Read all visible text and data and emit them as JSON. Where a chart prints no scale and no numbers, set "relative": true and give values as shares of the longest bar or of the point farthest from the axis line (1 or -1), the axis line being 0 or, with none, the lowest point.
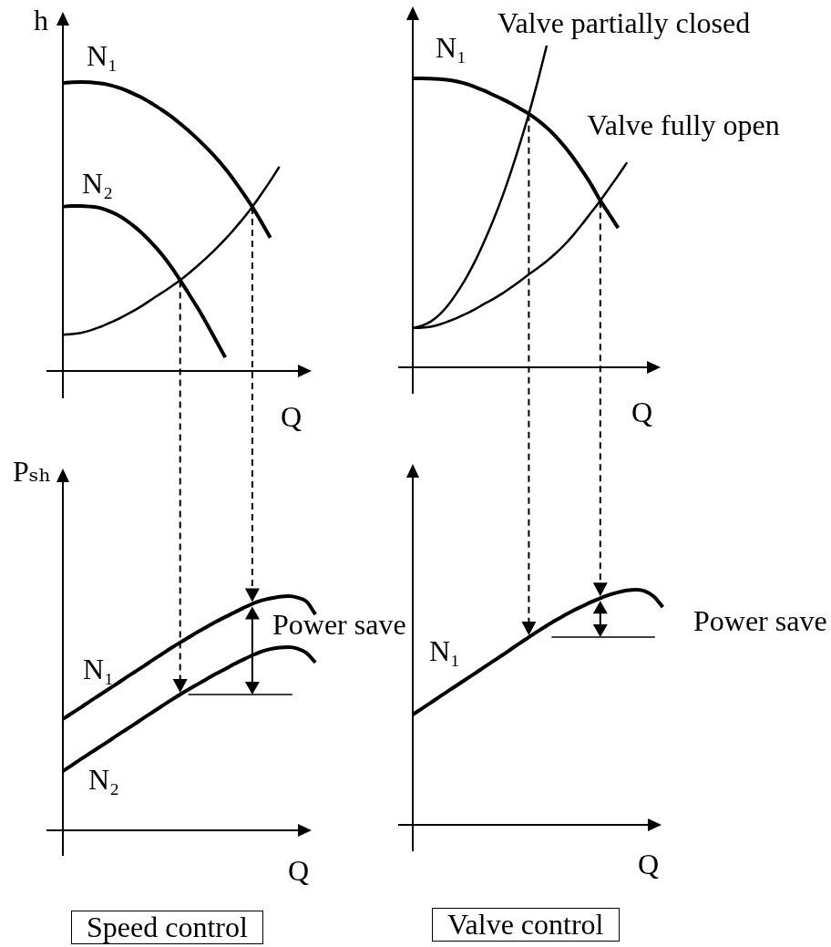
{
  "chart_data": [
    {
      "type": "line",
      "relative": true,
      "ylabel": "h",
      "xlabel": "Q",
      "marker": "none",
      "categories": [
        null,
        null,
        null,
        null,
        null,
        null,
        null,
        null,
        null,
        null,
        null,
        null,
        null,
        null,
        null,
        null,
        null,
        null,
        null,
        null,
        null,
        null,
        null,
        null,
        null,
        null,
        null,
        null,
        null
      ],
      "series": [
        {
          "name": "N₁",
          "color": "#000000",
          "values": [
            0.997,
            0.999,
            1,
            0.999,
            0.996,
            0.991,
            0.982,
            0.971,
            0.957,
            0.942,
            0.923,
            0.903,
            0.881,
            0.856,
            0.83,
            0.801,
            0.77,
            0.737,
            0.7,
            0.659,
            0.615,
            0.568,
            0.516,
            0.461,
            null,
            null,
            null,
            null,
            null
          ]
        },
        {
          "name": "N₂",
          "color": "#000000",
          "values": [
            0.569,
            0.571,
            0.571,
            0.569,
            0.565,
            0.555,
            0.541,
            0.522,
            0.498,
            0.47,
            0.438,
            0.402,
            0.361,
            0.314,
            0.265,
            0.215,
            0.161,
            0.104,
            0.047,
            null,
            null,
            null,
            null,
            null,
            null,
            null,
            null,
            null,
            null
          ]
        },
        {
          "color": "#000000",
          "values": [
            0.125,
            0.128,
            0.132,
            0.14,
            0.151,
            0.164,
            0.178,
            0.194,
            0.211,
            0.23,
            0.251,
            0.271,
            0.292,
            0.314,
            0.339,
            0.366,
            0.394,
            0.424,
            0.456,
            0.491,
            0.528,
            0.568,
            0.612,
            0.658,
            0.707,
            null,
            null,
            null,
            null
          ]
        }
      ]
    },
    {
      "type": "line",
      "relative": true,
      "xlabel": "Q",
      "marker": "none",
      "categories": [
        null,
        null,
        null,
        null,
        null,
        null,
        null,
        null,
        null,
        null,
        null,
        null,
        null,
        null,
        null,
        null,
        null,
        null,
        null,
        null,
        null,
        null,
        null,
        null,
        null,
        null,
        null,
        null,
        null
      ],
      "series": [
        {
          "name": "N₁",
          "color": "#000000",
          "values": [
            0.898,
            0.898,
            0.897,
            0.896,
            0.893,
            0.888,
            0.881,
            0.871,
            0.86,
            0.847,
            0.834,
            0.82,
            0.804,
            0.788,
            0.768,
            0.745,
            0.718,
            0.686,
            0.65,
            0.61,
            0.567,
            0.518,
            0.476,
            0.433,
            null,
            null,
            null,
            null,
            null
          ]
        },
        {
          "name": "Valve partially closed",
          "color": "#000000",
          "values": [
            0.122,
            0.129,
            0.142,
            0.164,
            0.195,
            0.234,
            0.279,
            0.331,
            0.391,
            0.456,
            0.528,
            0.608,
            0.695,
            0.788,
            0.89,
            1,
            null,
            null,
            null,
            null,
            null,
            null,
            null,
            null,
            null,
            null,
            null,
            null,
            null
          ]
        },
        {
          "name": "Valve fully open",
          "color": "#000000",
          "values": [
            0.122,
            0.123,
            0.126,
            0.133,
            0.143,
            0.154,
            0.167,
            0.181,
            0.197,
            0.212,
            0.229,
            0.248,
            0.268,
            0.289,
            0.309,
            0.33,
            0.354,
            0.381,
            0.412,
            0.446,
            0.482,
            0.518,
            0.557,
            0.596,
            0.637,
            null,
            null,
            null,
            null
          ]
        }
      ]
    },
    {
      "type": "line",
      "relative": true,
      "ylabel": "Pₛₕ",
      "xlabel": "Q",
      "marker": "none",
      "categories": [
        null,
        null,
        null,
        null,
        null,
        null,
        null,
        null,
        null,
        null,
        null,
        null,
        null,
        null,
        null,
        null,
        null,
        null,
        null,
        null,
        null,
        null,
        null,
        null,
        null,
        null,
        null,
        null,
        null
      ],
      "series": [
        {
          "name": "N₁",
          "color": "#000000",
          "values": [
            0.475,
            0.5,
            0.525,
            0.551,
            0.576,
            0.601,
            0.626,
            0.652,
            0.677,
            0.702,
            0.728,
            0.753,
            0.778,
            0.802,
            0.825,
            0.848,
            0.87,
            0.891,
            0.911,
            0.93,
            0.949,
            0.967,
            0.981,
            0.99,
            0.997,
            1,
            0.994,
            0.977,
            0.922
          ]
        },
        {
          "name": "N₂",
          "color": "#000000",
          "values": [
            0.253,
            0.278,
            0.304,
            0.329,
            0.354,
            0.379,
            0.405,
            0.43,
            0.455,
            0.481,
            0.506,
            0.531,
            0.556,
            0.58,
            0.603,
            0.625,
            0.647,
            0.669,
            0.689,
            0.71,
            0.729,
            0.747,
            0.763,
            0.774,
            0.78,
            0.782,
            0.776,
            0.757,
            0.716
          ]
        }
      ],
      "annotations": [
        "Power save",
        "Speed control"
      ]
    },
    {
      "type": "line",
      "relative": true,
      "xlabel": "Q",
      "marker": "none",
      "categories": [
        null,
        null,
        null,
        null,
        null,
        null,
        null,
        null,
        null,
        null,
        null,
        null,
        null,
        null,
        null,
        null,
        null,
        null,
        null,
        null,
        null,
        null,
        null,
        null,
        null,
        null,
        null,
        null,
        null
      ],
      "series": [
        {
          "name": "N₁",
          "color": "#000000",
          "values": [
            0.469,
            0.494,
            0.519,
            0.545,
            0.57,
            0.595,
            0.62,
            0.645,
            0.671,
            0.696,
            0.721,
            0.747,
            0.773,
            0.798,
            0.823,
            0.847,
            0.87,
            0.891,
            0.912,
            0.93,
            0.948,
            0.964,
            0.978,
            0.989,
            0.997,
            1,
            0.994,
            0.971,
            0.926
          ]
        }
      ],
      "annotations": [
        "Power save",
        "Valve control"
      ]
    }
  ]
}
